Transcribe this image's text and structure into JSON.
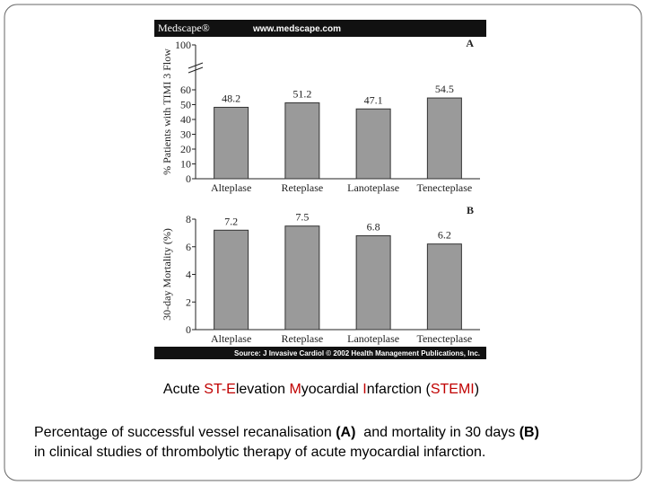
{
  "banner": {
    "logo": "Medscape®",
    "url": "www.medscape.com"
  },
  "chart_data": [
    {
      "type": "bar",
      "panel": "A",
      "y_label": "% Patients with TIMI 3 Flow",
      "categories": [
        "Alteplase",
        "Reteplase",
        "Lanoteplase",
        "Tenecteplase"
      ],
      "values": [
        48.2,
        51.2,
        47.1,
        54.5
      ],
      "color": "#9a9a9a",
      "ylim": [
        0,
        100
      ],
      "yticks": [
        0,
        10,
        20,
        30,
        40,
        50,
        60,
        100
      ],
      "axis_break": [
        60,
        100
      ]
    },
    {
      "type": "bar",
      "panel": "B",
      "y_label": "30-day Mortality (%)",
      "categories": [
        "Alteplase",
        "Reteplase",
        "Lanoteplase",
        "Tenecteplase"
      ],
      "values": [
        7.2,
        7.5,
        6.8,
        6.2
      ],
      "color": "#9a9a9a",
      "ylim": [
        0,
        8
      ],
      "yticks": [
        0,
        2,
        4,
        6,
        8
      ]
    }
  ],
  "source": "Source: J Invasive Cardiol © 2002 Health Management Publications, Inc.",
  "heading": [
    {
      "text": "Acute "
    },
    {
      "text": "ST-",
      "color": "#c00000"
    },
    {
      "text": "E",
      "color": "#c00000"
    },
    {
      "text": "levation "
    },
    {
      "text": "M",
      "color": "#c00000"
    },
    {
      "text": "yocardial "
    },
    {
      "text": "I",
      "color": "#c00000"
    },
    {
      "text": "nfarction ("
    },
    {
      "text": "STEMI",
      "color": "#c00000"
    },
    {
      "text": ")"
    }
  ],
  "caption": [
    [
      {
        "text": "Percentage of successful vessel recanalisation "
      },
      {
        "text": "(A)",
        "bold": true
      },
      {
        "text": "  and mortality in 30 days "
      },
      {
        "text": "(B)",
        "bold": true
      }
    ],
    [
      {
        "text": "in clinical studies of thrombolytic therapy of acute myocardial infarction."
      }
    ]
  ]
}
